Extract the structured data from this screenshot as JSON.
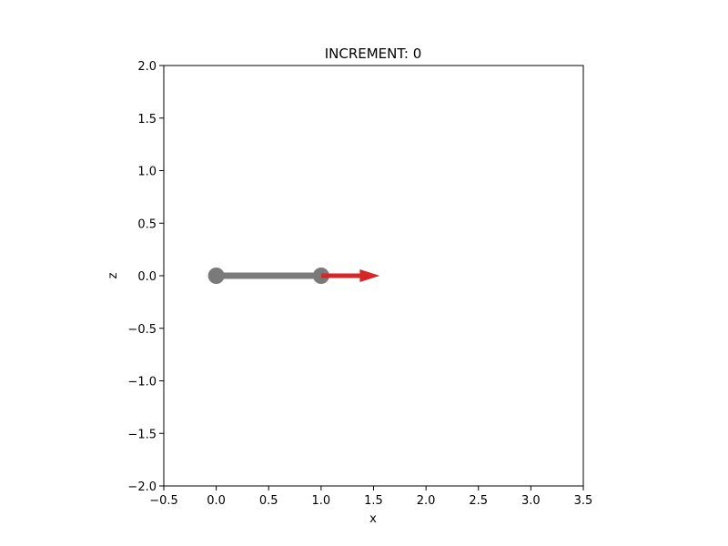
{
  "chart_data": {
    "type": "line",
    "title": "INCREMENT: 0",
    "xlabel": "x",
    "ylabel": "z",
    "xlim": [
      -0.5,
      3.5
    ],
    "ylim": [
      -2.0,
      2.0
    ],
    "xticks": [
      "-0.5",
      "0.0",
      "0.5",
      "1.0",
      "1.5",
      "2.0",
      "2.5",
      "3.0",
      "3.5"
    ],
    "yticks": [
      "2.0",
      "1.5",
      "1.0",
      "0.5",
      "0.0",
      "-0.5",
      "-1.0",
      "-1.5",
      "-2.0"
    ],
    "grid": false,
    "series": [
      {
        "x": [
          0.0,
          1.0
        ],
        "y": [
          0.0,
          0.0
        ],
        "color": "#7a7a7a",
        "marker": "circle"
      }
    ],
    "arrows": [
      {
        "x": 1.0,
        "y": 0.0,
        "dx": 0.56,
        "dy": 0.0,
        "color": "#d62728"
      }
    ]
  }
}
